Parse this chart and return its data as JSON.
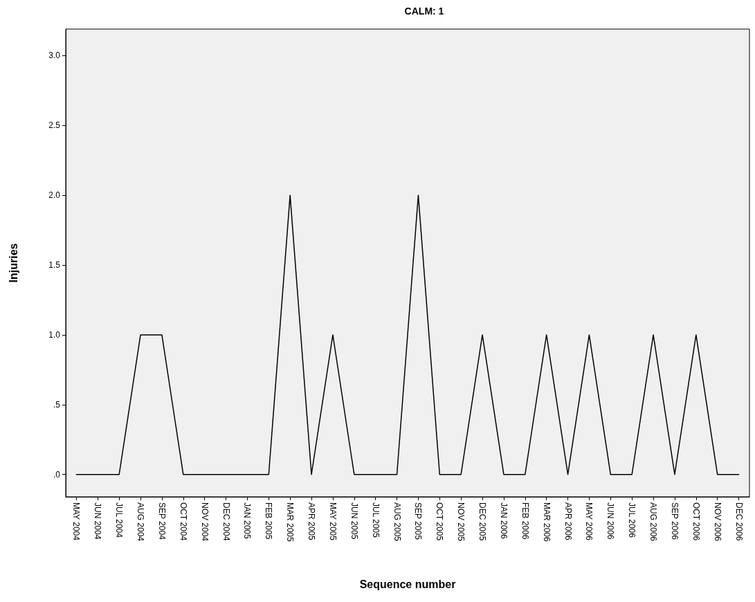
{
  "chart_data": {
    "type": "line",
    "title": "CALM: 1",
    "xlabel": "Sequence number",
    "ylabel": "Injuries",
    "categories": [
      "MAY 2004",
      "JUN 2004",
      "JUL 2004",
      "AUG 2004",
      "SEP 2004",
      "OCT 2004",
      "NOV 2004",
      "DEC 2004",
      "JAN 2005",
      "FEB 2005",
      "MAR 2005",
      "APR 2005",
      "MAY 2005",
      "JUN 2005",
      "JUL 2005",
      "AUG 2005",
      "SEP 2005",
      "OCT 2005",
      "NOV 2005",
      "DEC 2005",
      "JAN 2006",
      "FEB 2006",
      "MAR 2006",
      "APR 2006",
      "MAY 2006",
      "JUN 2006",
      "JUL 2006",
      "AUG 2006",
      "SEP 2006",
      "OCT 2006",
      "NOV 2006",
      "DEC 2006"
    ],
    "series": [
      {
        "color": "#000000",
        "values": [
          0,
          0,
          0,
          1,
          1,
          0,
          0,
          0,
          0,
          0,
          2,
          0,
          1,
          0,
          0,
          0,
          2,
          0,
          0,
          1,
          0,
          0,
          1,
          0,
          1,
          0,
          0,
          1,
          0,
          1,
          0,
          0
        ]
      }
    ],
    "ylim": [
      -0.16,
      3.19
    ],
    "yticks": [
      {
        "value": 0,
        "label": ".0"
      },
      {
        "value": 0.5,
        "label": ".5"
      },
      {
        "value": 1,
        "label": "1.0"
      },
      {
        "value": 1.5,
        "label": "1.5"
      },
      {
        "value": 2,
        "label": "2.0"
      },
      {
        "value": 2.5,
        "label": "2.5"
      },
      {
        "value": 3,
        "label": "3.0"
      }
    ],
    "grid": false,
    "marker": "none",
    "line_style": "solid"
  }
}
